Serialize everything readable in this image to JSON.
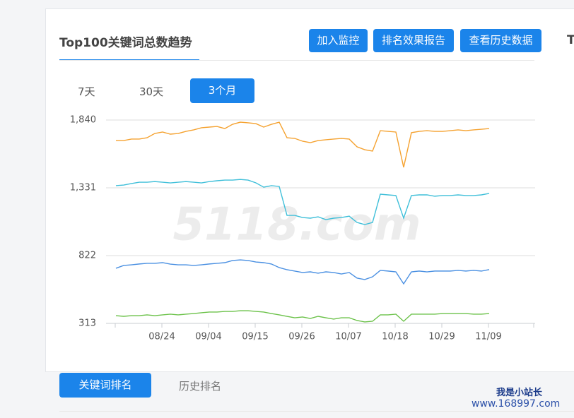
{
  "header": {
    "title": "Top100关键词总数趋势",
    "buttons": [
      "加入监控",
      "排名效果报告",
      "查看历史数据"
    ],
    "next_tab": "T"
  },
  "range_tabs": [
    "7天",
    "30天",
    "3个月"
  ],
  "chart_data": {
    "type": "line",
    "watermark": "5118.com",
    "categories": [
      null,
      null,
      null,
      null,
      null,
      null,
      "08/24",
      null,
      null,
      null,
      null,
      null,
      "09/04",
      null,
      null,
      null,
      null,
      null,
      "09/15",
      null,
      null,
      null,
      null,
      null,
      "09/26",
      null,
      null,
      null,
      null,
      null,
      "10/07",
      null,
      null,
      null,
      null,
      null,
      "10/18",
      null,
      null,
      null,
      null,
      null,
      "10/29",
      null,
      null,
      null,
      null,
      null,
      "11/09"
    ],
    "ylim": [
      313,
      1840
    ],
    "yticks": [
      313,
      822,
      {
        "value": 1331,
        "label": "1,331"
      },
      {
        "value": 1840,
        "label": "1,840"
      }
    ],
    "grid": true,
    "series": [
      {
        "color": "#f5a230",
        "values": [
          1686,
          1686,
          1697,
          1697,
          1707,
          1739,
          1750,
          1734,
          1739,
          1755,
          1766,
          1782,
          1787,
          1792,
          1776,
          1808,
          1824,
          1819,
          1813,
          1787,
          1808,
          1824,
          1707,
          1702,
          1681,
          1670,
          1686,
          1692,
          1697,
          1702,
          1697,
          1639,
          1617,
          1607,
          1760,
          1755,
          1750,
          1485,
          1745,
          1755,
          1760,
          1755,
          1755,
          1760,
          1766,
          1760,
          1766,
          1771,
          1776
        ]
      },
      {
        "color": "#3fbfd9",
        "values": [
          1347,
          1352,
          1363,
          1373,
          1373,
          1378,
          1373,
          1368,
          1373,
          1378,
          1373,
          1368,
          1378,
          1384,
          1389,
          1389,
          1394,
          1389,
          1368,
          1336,
          1347,
          1341,
          1124,
          1124,
          1108,
          1103,
          1113,
          1092,
          1103,
          1108,
          1118,
          1071,
          1055,
          1071,
          1283,
          1278,
          1273,
          1103,
          1273,
          1278,
          1278,
          1268,
          1273,
          1273,
          1278,
          1273,
          1273,
          1278,
          1289
        ]
      },
      {
        "color": "#4a90e2",
        "values": [
          727,
          748,
          753,
          759,
          764,
          764,
          769,
          758,
          753,
          753,
          748,
          753,
          759,
          764,
          769,
          785,
          790,
          785,
          774,
          769,
          759,
          732,
          716,
          706,
          695,
          700,
          690,
          700,
          695,
          684,
          695,
          653,
          642,
          663,
          711,
          706,
          700,
          610,
          700,
          706,
          700,
          706,
          706,
          706,
          711,
          706,
          711,
          706,
          717
        ]
      },
      {
        "color": "#6cc24a",
        "values": [
          371,
          366,
          371,
          371,
          377,
          371,
          377,
          382,
          377,
          382,
          387,
          393,
          398,
          398,
          403,
          403,
          408,
          408,
          403,
          398,
          387,
          377,
          366,
          355,
          361,
          350,
          366,
          355,
          345,
          355,
          355,
          335,
          324,
          329,
          377,
          377,
          382,
          329,
          382,
          382,
          382,
          382,
          387,
          387,
          387,
          387,
          382,
          382,
          387
        ]
      }
    ]
  },
  "bottom_tabs": [
    "关键词排名",
    "历史排名"
  ],
  "footer": {
    "line1": "我是小站长",
    "line2": "www.168997.com"
  }
}
